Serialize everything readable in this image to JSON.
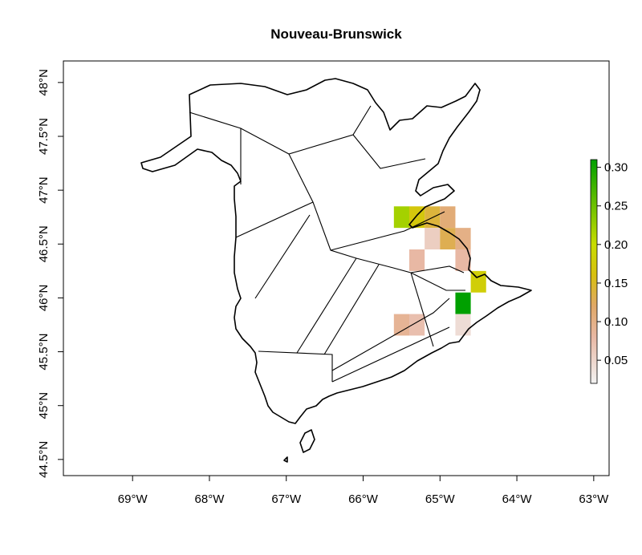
{
  "title": "Nouveau-Brunswick",
  "x_ticks": [
    {
      "lon": -69,
      "label": "69°W"
    },
    {
      "lon": -68,
      "label": "68°W"
    },
    {
      "lon": -67,
      "label": "67°W"
    },
    {
      "lon": -66,
      "label": "66°W"
    },
    {
      "lon": -65,
      "label": "65°W"
    },
    {
      "lon": -64,
      "label": "64°W"
    },
    {
      "lon": -63,
      "label": "63°W"
    }
  ],
  "y_ticks": [
    {
      "lat": 44.5,
      "label": "44.5°N"
    },
    {
      "lat": 45.0,
      "label": "45°N"
    },
    {
      "lat": 45.5,
      "label": "45.5°N"
    },
    {
      "lat": 46.0,
      "label": "46°N"
    },
    {
      "lat": 46.5,
      "label": "46.5°N"
    },
    {
      "lat": 47.0,
      "label": "47°N"
    },
    {
      "lat": 47.5,
      "label": "47.5°N"
    },
    {
      "lat": 48.0,
      "label": "48°N"
    }
  ],
  "colors": {
    "low": "#f2f2f2",
    "mid1": "#e8b8a4",
    "mid2": "#e0a868",
    "mid3": "#d8c010",
    "mid4": "#c8dc00",
    "high": "#00a000"
  },
  "legend": {
    "ticks": [
      {
        "value": 0.05,
        "label": "0.05"
      },
      {
        "value": 0.1,
        "label": "0.10"
      },
      {
        "value": 0.15,
        "label": "0.15"
      },
      {
        "value": 0.2,
        "label": "0.20"
      },
      {
        "value": 0.25,
        "label": "0.25"
      },
      {
        "value": 0.3,
        "label": "0.30"
      }
    ],
    "min": 0.02,
    "max": 0.31
  },
  "chart_data": {
    "type": "heatmap",
    "title": "Nouveau-Brunswick",
    "xlim": [
      -69.9,
      -62.8
    ],
    "ylim": [
      44.35,
      48.2
    ],
    "cell_size_deg": [
      0.2,
      0.2
    ],
    "cells": [
      {
        "lon": -65.5,
        "lat": 46.75,
        "value": 0.22
      },
      {
        "lon": -65.3,
        "lat": 46.75,
        "value": 0.17
      },
      {
        "lon": -65.1,
        "lat": 46.75,
        "value": 0.14
      },
      {
        "lon": -64.9,
        "lat": 46.75,
        "value": 0.11
      },
      {
        "lon": -65.1,
        "lat": 46.55,
        "value": 0.05
      },
      {
        "lon": -64.9,
        "lat": 46.55,
        "value": 0.13
      },
      {
        "lon": -64.7,
        "lat": 46.55,
        "value": 0.1
      },
      {
        "lon": -65.3,
        "lat": 46.35,
        "value": 0.08
      },
      {
        "lon": -64.7,
        "lat": 46.35,
        "value": 0.08
      },
      {
        "lon": -64.5,
        "lat": 46.15,
        "value": 0.18
      },
      {
        "lon": -64.7,
        "lat": 45.95,
        "value": 0.31
      },
      {
        "lon": -64.7,
        "lat": 45.75,
        "value": 0.03
      },
      {
        "lon": -65.5,
        "lat": 45.75,
        "value": 0.09
      },
      {
        "lon": -65.3,
        "lat": 45.75,
        "value": 0.07
      }
    ]
  }
}
